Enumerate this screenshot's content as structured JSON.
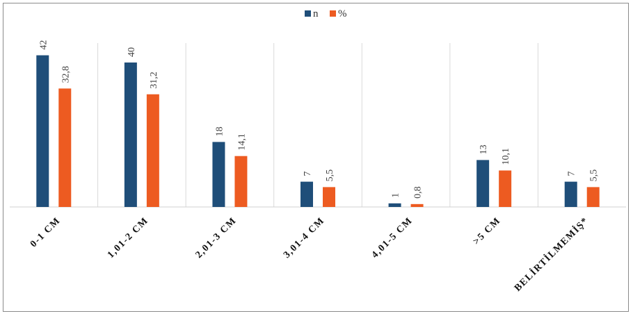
{
  "chart_data": {
    "type": "bar",
    "title": "",
    "xlabel": "",
    "ylabel": "",
    "categories": [
      "0-1 CM",
      "1,01-2 CM",
      "2,01-3 CM",
      "3,01-4 CM",
      "4,01-5 CM",
      ">5 CM",
      "BELİRTİLMEMİŞ*"
    ],
    "series": [
      {
        "name": "n",
        "color": "#1f4e79",
        "values": [
          42,
          40,
          18,
          7,
          1,
          13,
          7
        ],
        "labels": [
          "42",
          "40",
          "18",
          "7",
          "1",
          "13",
          "7"
        ]
      },
      {
        "name": "%",
        "color": "#ed5b21",
        "values": [
          32.8,
          31.2,
          14.1,
          5.5,
          0.8,
          10.1,
          5.5
        ],
        "labels": [
          "32,8",
          "31,2",
          "14,1",
          "5,5",
          "0,8",
          "10,1",
          "5,5"
        ]
      }
    ],
    "ylim": [
      0,
      45
    ],
    "grid": "vertical separators",
    "legend_position": "top-center"
  }
}
